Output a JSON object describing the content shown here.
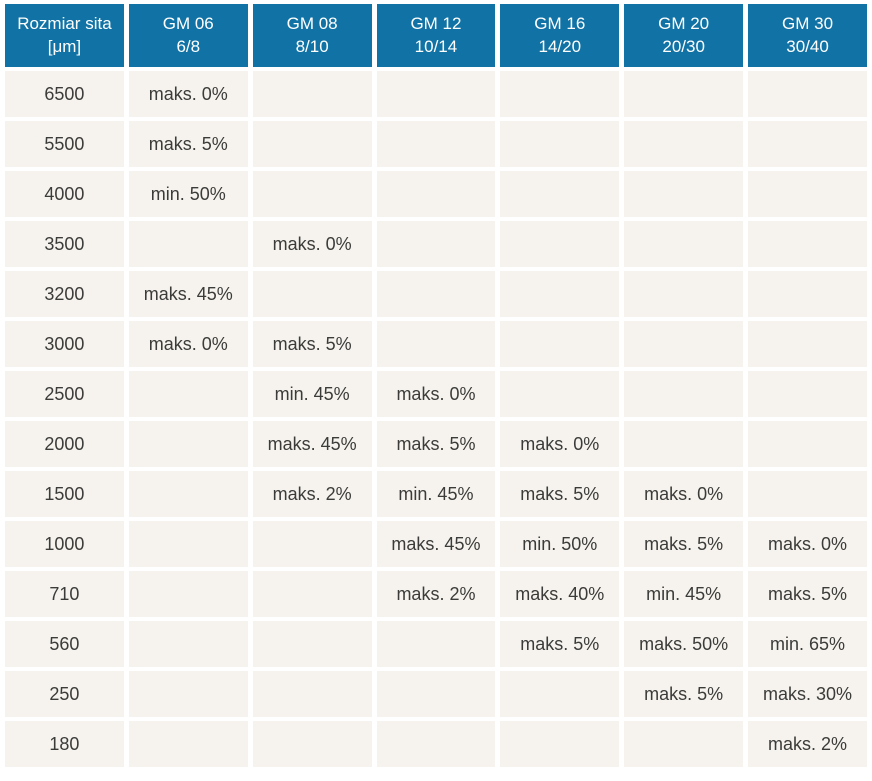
{
  "table": {
    "colors": {
      "header_bg": "#1173a5",
      "header_text": "#ffffff",
      "cell_bg": "#f6f3ee",
      "cell_text": "#3b3b39",
      "gap": "#ffffff"
    },
    "header": {
      "size_col": {
        "line1": "Rozmiar sita",
        "line2": "[μm]"
      },
      "grades": [
        {
          "line1": "GM 06",
          "line2": "6/8"
        },
        {
          "line1": "GM 08",
          "line2": "8/10"
        },
        {
          "line1": "GM 12",
          "line2": "10/14"
        },
        {
          "line1": "GM 16",
          "line2": "14/20"
        },
        {
          "line1": "GM 20",
          "line2": "20/30"
        },
        {
          "line1": "GM 30",
          "line2": "30/40"
        }
      ]
    },
    "rows": [
      {
        "size": "6500",
        "values": [
          "maks. 0%",
          "",
          "",
          "",
          "",
          ""
        ]
      },
      {
        "size": "5500",
        "values": [
          "maks. 5%",
          "",
          "",
          "",
          "",
          ""
        ]
      },
      {
        "size": "4000",
        "values": [
          "min. 50%",
          "",
          "",
          "",
          "",
          ""
        ]
      },
      {
        "size": "3500",
        "values": [
          "",
          "maks. 0%",
          "",
          "",
          "",
          ""
        ]
      },
      {
        "size": "3200",
        "values": [
          "maks. 45%",
          "",
          "",
          "",
          "",
          ""
        ]
      },
      {
        "size": "3000",
        "values": [
          "maks. 0%",
          "maks. 5%",
          "",
          "",
          "",
          ""
        ]
      },
      {
        "size": "2500",
        "values": [
          "",
          "min. 45%",
          "maks. 0%",
          "",
          "",
          ""
        ]
      },
      {
        "size": "2000",
        "values": [
          "",
          "maks. 45%",
          "maks. 5%",
          "maks. 0%",
          "",
          ""
        ]
      },
      {
        "size": "1500",
        "values": [
          "",
          "maks. 2%",
          "min. 45%",
          "maks. 5%",
          "maks. 0%",
          ""
        ]
      },
      {
        "size": "1000",
        "values": [
          "",
          "",
          "maks. 45%",
          "min. 50%",
          "maks. 5%",
          "maks. 0%"
        ]
      },
      {
        "size": "710",
        "values": [
          "",
          "",
          "maks. 2%",
          "maks. 40%",
          "min. 45%",
          "maks. 5%"
        ]
      },
      {
        "size": "560",
        "values": [
          "",
          "",
          "",
          "maks. 5%",
          "maks. 50%",
          "min. 65%"
        ]
      },
      {
        "size": "250",
        "values": [
          "",
          "",
          "",
          "",
          "maks. 5%",
          "maks. 30%"
        ]
      },
      {
        "size": "180",
        "values": [
          "",
          "",
          "",
          "",
          "",
          "maks. 2%"
        ]
      }
    ]
  }
}
